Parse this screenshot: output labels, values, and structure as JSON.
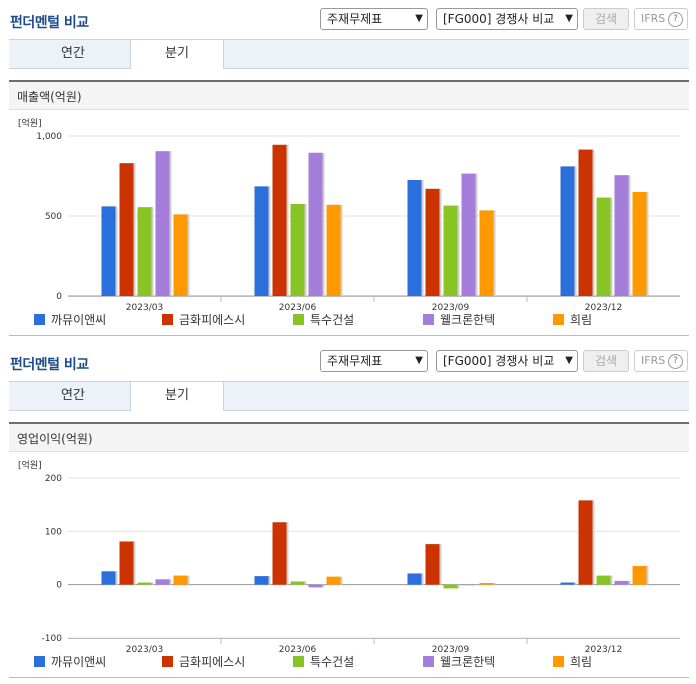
{
  "panels": [
    {
      "title": "펀더멘털 비교",
      "select1": "주재무제표",
      "select2": "[FG000] 경쟁사 비교",
      "search_label": "검색",
      "ifrs_label": "IFRS",
      "ifrs_help": "?",
      "tabs": [
        "연간",
        "분기"
      ],
      "active_tab": "분기",
      "section_title": "매출액(억원)"
    },
    {
      "title": "펀더멘털 비교",
      "select1": "주재무제표",
      "select2": "[FG000] 경쟁사 비교",
      "search_label": "검색",
      "ifrs_label": "IFRS",
      "ifrs_help": "?",
      "tabs": [
        "연간",
        "분기"
      ],
      "active_tab": "분기",
      "section_title": "영업이익(억원)"
    }
  ],
  "colors": [
    "#2b6fdc",
    "#cc3300",
    "#88c425",
    "#a57ddb",
    "#ff9900"
  ],
  "chart_data": [
    {
      "type": "bar",
      "unit_label": "[억원]",
      "categories": [
        "2023/03",
        "2023/06",
        "2023/09",
        "2023/12"
      ],
      "ylim": [
        0,
        1000
      ],
      "yticks": [
        "0",
        "500",
        "1,000"
      ],
      "ytick_values": [
        0,
        500,
        1000
      ],
      "grid": true,
      "legend_position": "bottom",
      "series": [
        {
          "name": "까뮤이앤씨",
          "values": [
            560,
            685,
            725,
            810
          ]
        },
        {
          "name": "금화피에스시",
          "values": [
            830,
            945,
            670,
            915
          ]
        },
        {
          "name": "특수건설",
          "values": [
            555,
            575,
            565,
            615
          ]
        },
        {
          "name": "웰크론한텍",
          "values": [
            905,
            895,
            765,
            755
          ]
        },
        {
          "name": "희림",
          "values": [
            510,
            570,
            535,
            650
          ]
        }
      ]
    },
    {
      "type": "bar",
      "unit_label": "[억원]",
      "categories": [
        "2023/03",
        "2023/06",
        "2023/09",
        "2023/12"
      ],
      "ylim": [
        -100,
        200
      ],
      "yticks": [
        "-100",
        "0",
        "100",
        "200"
      ],
      "ytick_values": [
        -100,
        0,
        100,
        200
      ],
      "grid": true,
      "legend_position": "bottom",
      "series": [
        {
          "name": "까뮤이앤씨",
          "values": [
            25,
            16,
            21,
            4
          ]
        },
        {
          "name": "금화피에스시",
          "values": [
            81,
            117,
            76,
            158
          ]
        },
        {
          "name": "특수건설",
          "values": [
            4,
            6,
            -7,
            17
          ]
        },
        {
          "name": "웰크론한텍",
          "values": [
            10,
            -5,
            0,
            7
          ]
        },
        {
          "name": "희림",
          "values": [
            17,
            15,
            3,
            35
          ]
        }
      ]
    }
  ]
}
